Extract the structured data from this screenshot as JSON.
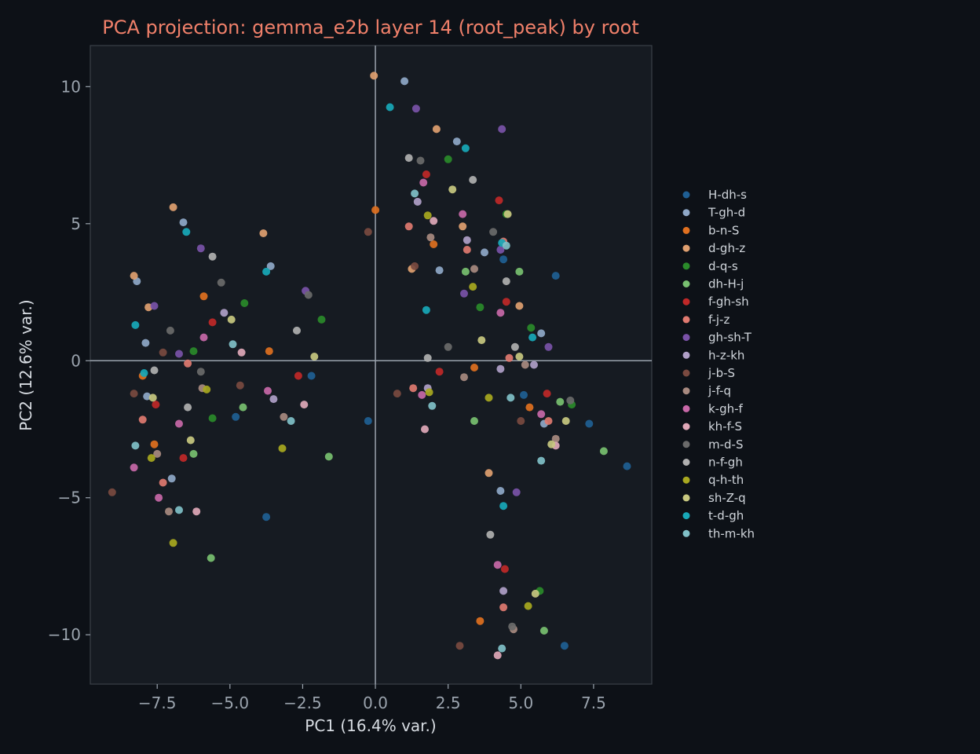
{
  "chart_data": {
    "type": "scatter",
    "title": "PCA projection: gemma_e2b layer 14 (root_peak) by root",
    "xlabel": "PC1 (16.4% var.)",
    "ylabel": "PC2 (12.6% var.)",
    "xlim": [
      -9.8,
      9.5
    ],
    "ylim": [
      -11.8,
      11.5
    ],
    "xticks": [
      -7.5,
      -5.0,
      -2.5,
      0.0,
      2.5,
      5.0,
      7.5
    ],
    "xtick_labels": [
      "−7.5",
      "−5.0",
      "−2.5",
      "0.0",
      "2.5",
      "5.0",
      "7.5"
    ],
    "yticks": [
      -10,
      -5,
      0,
      5,
      10
    ],
    "ytick_labels": [
      "−10",
      "−5",
      "0",
      "5",
      "10"
    ],
    "grid": false,
    "zero_lines": true,
    "legend_position": "right",
    "series": [
      {
        "name": "H-dh-s",
        "color": "#1f5f94",
        "points": [
          [
            4.4,
            3.7
          ],
          [
            6.2,
            3.1
          ],
          [
            -2.2,
            -0.55
          ],
          [
            -4.8,
            -2.05
          ],
          [
            -0.25,
            -2.2
          ],
          [
            5.1,
            -1.25
          ],
          [
            7.35,
            -2.3
          ],
          [
            8.65,
            -3.85
          ],
          [
            -3.75,
            -5.7
          ],
          [
            6.5,
            -10.4
          ]
        ]
      },
      {
        "name": "T-gh-d",
        "color": "#8fa8c8",
        "points": [
          [
            1.0,
            10.2
          ],
          [
            2.8,
            8.0
          ],
          [
            -6.6,
            5.05
          ],
          [
            -3.6,
            3.45
          ],
          [
            -8.2,
            2.9
          ],
          [
            -7.9,
            0.65
          ],
          [
            2.2,
            3.3
          ],
          [
            3.75,
            3.95
          ],
          [
            5.7,
            1.0
          ],
          [
            -7.85,
            -1.3
          ],
          [
            5.8,
            -2.3
          ],
          [
            -7.0,
            -4.3
          ],
          [
            4.3,
            -4.75
          ]
        ]
      },
      {
        "name": "b-n-S",
        "color": "#e07020",
        "points": [
          [
            0.0,
            5.5
          ],
          [
            2.0,
            4.25
          ],
          [
            -5.9,
            2.35
          ],
          [
            -3.65,
            0.35
          ],
          [
            3.4,
            -0.25
          ],
          [
            -8.0,
            -0.55
          ],
          [
            5.3,
            -1.7
          ],
          [
            -7.6,
            -3.05
          ],
          [
            3.6,
            -9.5
          ]
        ]
      },
      {
        "name": "d-gh-z",
        "color": "#e0a070",
        "points": [
          [
            -0.05,
            10.4
          ],
          [
            2.1,
            8.45
          ],
          [
            -6.95,
            5.6
          ],
          [
            -3.85,
            4.65
          ],
          [
            3.0,
            4.9
          ],
          [
            1.25,
            3.35
          ],
          [
            -8.3,
            3.1
          ],
          [
            -7.8,
            1.95
          ],
          [
            4.95,
            2.0
          ],
          [
            3.9,
            -4.1
          ]
        ]
      },
      {
        "name": "d-q-s",
        "color": "#2a8a2a",
        "points": [
          [
            2.5,
            7.35
          ],
          [
            4.5,
            5.35
          ],
          [
            -4.5,
            2.1
          ],
          [
            -1.85,
            1.5
          ],
          [
            3.6,
            1.95
          ],
          [
            -6.25,
            0.35
          ],
          [
            5.35,
            1.2
          ],
          [
            -5.6,
            -2.1
          ],
          [
            6.75,
            -1.6
          ],
          [
            5.65,
            -8.4
          ]
        ]
      },
      {
        "name": "dh-H-j",
        "color": "#78c070",
        "points": [
          [
            3.1,
            3.25
          ],
          [
            4.95,
            3.25
          ],
          [
            -4.55,
            -1.7
          ],
          [
            3.4,
            -2.2
          ],
          [
            6.35,
            -1.5
          ],
          [
            -6.25,
            -3.4
          ],
          [
            -1.6,
            -3.5
          ],
          [
            7.85,
            -3.3
          ],
          [
            -5.65,
            -7.2
          ],
          [
            5.8,
            -9.85
          ]
        ]
      },
      {
        "name": "f-gh-sh",
        "color": "#c02828",
        "points": [
          [
            1.75,
            6.8
          ],
          [
            4.25,
            5.85
          ],
          [
            -5.6,
            1.4
          ],
          [
            4.5,
            2.15
          ],
          [
            -2.65,
            -0.55
          ],
          [
            2.2,
            -0.4
          ],
          [
            -7.55,
            -1.6
          ],
          [
            5.9,
            -1.2
          ],
          [
            -6.6,
            -3.55
          ],
          [
            4.45,
            -7.6
          ]
        ]
      },
      {
        "name": "f-j-z",
        "color": "#e07a70",
        "points": [
          [
            1.15,
            4.9
          ],
          [
            3.15,
            4.05
          ],
          [
            4.4,
            4.35
          ],
          [
            -6.45,
            -0.1
          ],
          [
            4.6,
            0.1
          ],
          [
            1.3,
            -1.0
          ],
          [
            -8.0,
            -2.15
          ],
          [
            5.95,
            -2.2
          ],
          [
            -7.3,
            -4.45
          ],
          [
            4.4,
            -9.0
          ]
        ]
      },
      {
        "name": "gh-sh-T",
        "color": "#7a52a8",
        "points": [
          [
            1.4,
            9.2
          ],
          [
            4.35,
            8.45
          ],
          [
            -6.0,
            4.1
          ],
          [
            4.3,
            4.05
          ],
          [
            -2.4,
            2.55
          ],
          [
            -7.6,
            2.0
          ],
          [
            3.05,
            2.45
          ],
          [
            5.95,
            0.5
          ],
          [
            -6.75,
            0.25
          ],
          [
            4.85,
            -4.8
          ]
        ]
      },
      {
        "name": "h-z-kh",
        "color": "#b0a0c8",
        "points": [
          [
            1.45,
            5.8
          ],
          [
            3.15,
            4.4
          ],
          [
            -5.2,
            1.75
          ],
          [
            4.3,
            -0.3
          ],
          [
            -3.5,
            -1.4
          ],
          [
            5.45,
            -0.15
          ],
          [
            1.8,
            -1.0
          ],
          [
            4.4,
            -8.4
          ]
        ]
      },
      {
        "name": "j-b-S",
        "color": "#7a4a40",
        "points": [
          [
            -0.25,
            4.7
          ],
          [
            1.35,
            3.45
          ],
          [
            -7.3,
            0.3
          ],
          [
            -8.3,
            -1.2
          ],
          [
            0.75,
            -1.2
          ],
          [
            -4.65,
            -0.9
          ],
          [
            5.0,
            -2.2
          ],
          [
            2.9,
            -10.4
          ],
          [
            -9.05,
            -4.8
          ]
        ]
      },
      {
        "name": "j-f-q",
        "color": "#a88a80",
        "points": [
          [
            1.9,
            4.5
          ],
          [
            3.4,
            3.35
          ],
          [
            5.15,
            -0.15
          ],
          [
            3.05,
            -0.6
          ],
          [
            -5.95,
            -1.0
          ],
          [
            -3.15,
            -2.05
          ],
          [
            6.2,
            -2.85
          ],
          [
            -7.5,
            -3.4
          ],
          [
            -7.1,
            -5.5
          ],
          [
            4.75,
            -9.8
          ]
        ]
      },
      {
        "name": "k-gh-f",
        "color": "#c868a8",
        "points": [
          [
            1.65,
            6.5
          ],
          [
            3.0,
            5.35
          ],
          [
            -5.9,
            0.85
          ],
          [
            4.3,
            1.75
          ],
          [
            -3.7,
            -1.1
          ],
          [
            1.6,
            -1.25
          ],
          [
            5.7,
            -1.95
          ],
          [
            -6.75,
            -2.3
          ],
          [
            -8.3,
            -3.9
          ],
          [
            -7.45,
            -5.0
          ],
          [
            4.2,
            -7.45
          ]
        ]
      },
      {
        "name": "kh-f-S",
        "color": "#e0a8b8",
        "points": [
          [
            2.0,
            5.1
          ],
          [
            -4.6,
            0.3
          ],
          [
            -2.45,
            -1.6
          ],
          [
            1.7,
            -2.5
          ],
          [
            6.2,
            -3.1
          ],
          [
            -6.15,
            -5.5
          ],
          [
            4.2,
            -10.75
          ]
        ]
      },
      {
        "name": "m-d-S",
        "color": "#6a6a6a",
        "points": [
          [
            1.55,
            7.3
          ],
          [
            4.05,
            4.7
          ],
          [
            -5.3,
            2.85
          ],
          [
            -2.3,
            2.4
          ],
          [
            -7.05,
            1.1
          ],
          [
            2.5,
            0.5
          ],
          [
            -6.0,
            -0.4
          ],
          [
            6.7,
            -1.45
          ],
          [
            4.7,
            -9.7
          ]
        ]
      },
      {
        "name": "n-f-gh",
        "color": "#b0b0b0",
        "points": [
          [
            1.15,
            7.4
          ],
          [
            3.35,
            6.6
          ],
          [
            -5.6,
            3.8
          ],
          [
            4.5,
            2.9
          ],
          [
            -2.7,
            1.1
          ],
          [
            4.8,
            0.5
          ],
          [
            1.8,
            0.1
          ],
          [
            -7.6,
            -0.35
          ],
          [
            -6.45,
            -1.7
          ],
          [
            3.95,
            -6.35
          ]
        ]
      },
      {
        "name": "q-h-th",
        "color": "#a8a820",
        "points": [
          [
            1.8,
            5.3
          ],
          [
            3.35,
            2.7
          ],
          [
            -5.8,
            -1.05
          ],
          [
            3.9,
            -1.35
          ],
          [
            1.85,
            -1.15
          ],
          [
            -3.2,
            -3.2
          ],
          [
            -7.7,
            -3.55
          ],
          [
            -6.95,
            -6.65
          ],
          [
            5.25,
            -8.95
          ]
        ]
      },
      {
        "name": "sh-Z-q",
        "color": "#c8c880",
        "points": [
          [
            2.65,
            6.25
          ],
          [
            4.55,
            5.35
          ],
          [
            -4.95,
            1.5
          ],
          [
            3.65,
            0.75
          ],
          [
            -2.1,
            0.15
          ],
          [
            4.95,
            0.15
          ],
          [
            -7.65,
            -1.35
          ],
          [
            6.55,
            -2.2
          ],
          [
            -6.35,
            -2.9
          ],
          [
            6.05,
            -3.05
          ],
          [
            5.5,
            -8.5
          ]
        ]
      },
      {
        "name": "t-d-gh",
        "color": "#18a8b8",
        "points": [
          [
            0.5,
            9.25
          ],
          [
            3.1,
            7.75
          ],
          [
            -6.5,
            4.7
          ],
          [
            -3.75,
            3.25
          ],
          [
            4.35,
            4.3
          ],
          [
            -8.25,
            1.3
          ],
          [
            1.75,
            1.85
          ],
          [
            5.4,
            0.85
          ],
          [
            -7.95,
            -0.45
          ],
          [
            4.4,
            -5.3
          ]
        ]
      },
      {
        "name": "th-m-kh",
        "color": "#80c0c8",
        "points": [
          [
            1.35,
            6.1
          ],
          [
            4.5,
            4.2
          ],
          [
            -4.9,
            0.6
          ],
          [
            -2.9,
            -2.2
          ],
          [
            1.95,
            -1.65
          ],
          [
            4.65,
            -1.35
          ],
          [
            5.7,
            -3.65
          ],
          [
            -8.25,
            -3.1
          ],
          [
            -6.75,
            -5.45
          ],
          [
            4.35,
            -10.5
          ]
        ]
      }
    ]
  }
}
